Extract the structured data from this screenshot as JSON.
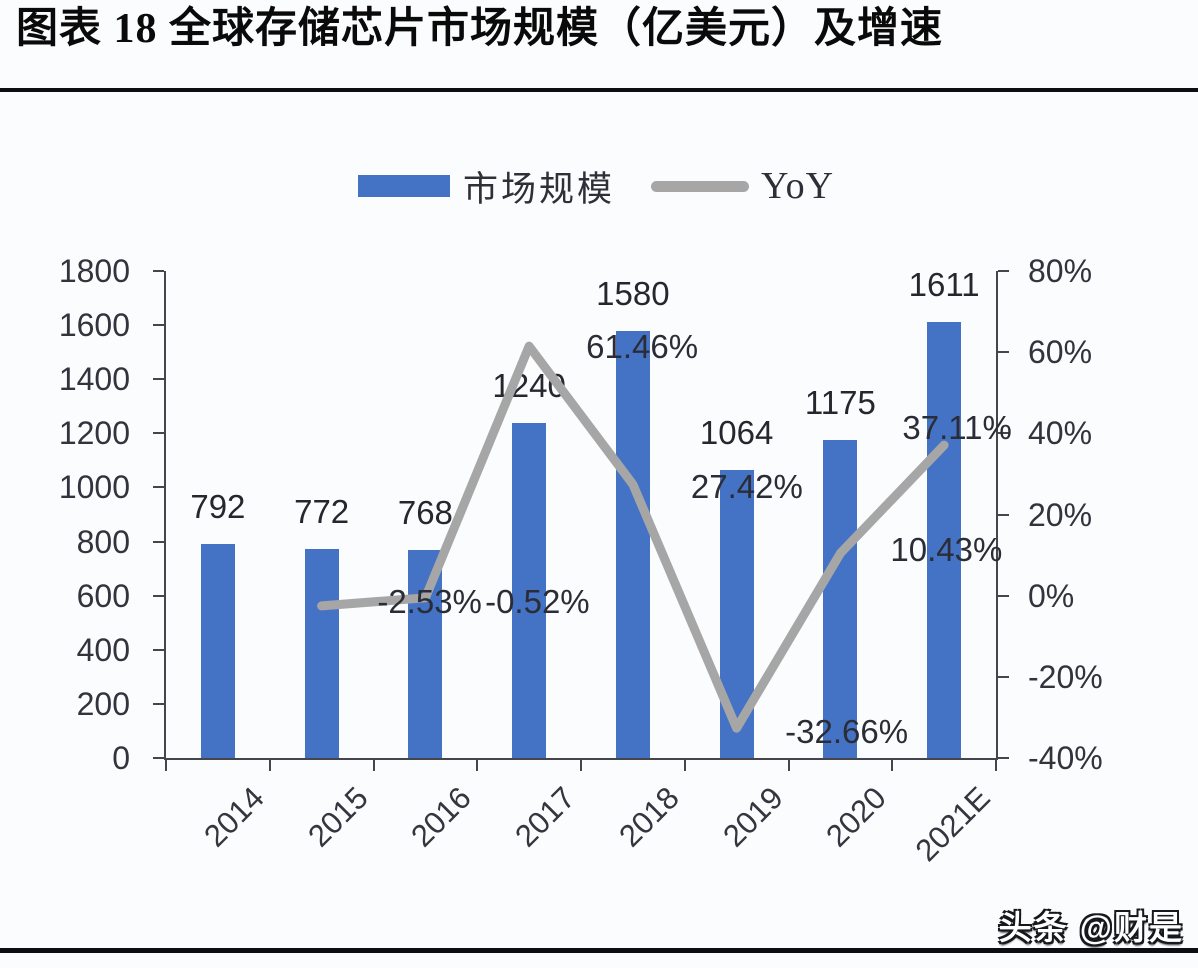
{
  "title": "图表 18 全球存储芯片市场规模（亿美元）及增速",
  "watermark": "头条 @财是",
  "chart_data": {
    "type": "bar",
    "subtype": "bar+line combo, dual axis",
    "title": "全球存储芯片市场规模（亿美元）及增速",
    "categories": [
      "2014",
      "2015",
      "2016",
      "2017",
      "2018",
      "2019",
      "2020",
      "2021E"
    ],
    "series": [
      {
        "name": "市场规模",
        "type": "bar",
        "axis": "left",
        "color": "#4472C4",
        "values": [
          792,
          772,
          768,
          1240,
          1580,
          1064,
          1175,
          1611
        ],
        "labels": [
          "792",
          "772",
          "768",
          "1240",
          "1580",
          "1064",
          "1175",
          "1611"
        ]
      },
      {
        "name": "YoY",
        "type": "line",
        "axis": "right",
        "color": "#A6A6A6",
        "values": [
          null,
          -2.53,
          -0.52,
          61.46,
          27.42,
          -32.66,
          10.43,
          37.11
        ],
        "labels": [
          null,
          "-2.53%",
          "-0.52%",
          "61.46%",
          "27.42%",
          "-32.66%",
          "10.43%",
          "37.11%"
        ]
      }
    ],
    "left_axis": {
      "min": 0,
      "max": 1800,
      "step": 200,
      "ticks": [
        "0",
        "200",
        "400",
        "600",
        "800",
        "1000",
        "1200",
        "1400",
        "1600",
        "1800"
      ]
    },
    "right_axis": {
      "min": -40,
      "max": 80,
      "step": 20,
      "ticks": [
        "-40%",
        "-20%",
        "0%",
        "20%",
        "40%",
        "60%",
        "80%"
      ]
    },
    "legend_position": "top",
    "grid": false
  }
}
